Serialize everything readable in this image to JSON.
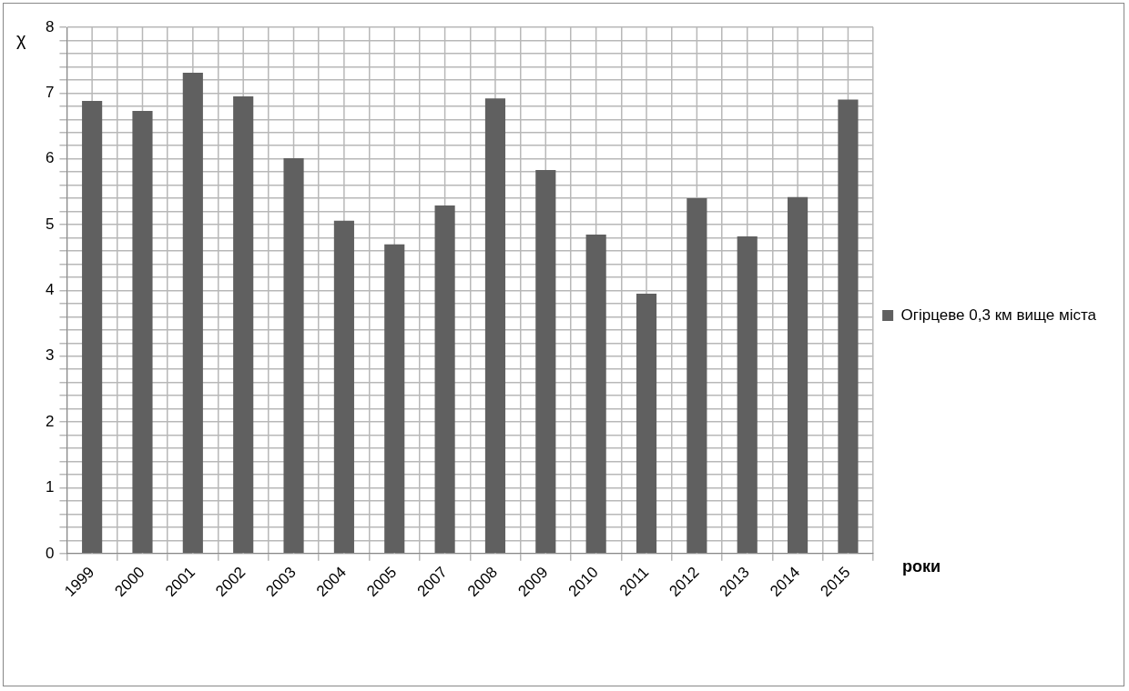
{
  "chart_data": {
    "type": "bar",
    "xlabel": "роки",
    "ylabel": "χ",
    "categories": [
      "1999",
      "2000",
      "2001",
      "2002",
      "2003",
      "2004",
      "2005",
      "2007",
      "2008",
      "2009",
      "2010",
      "2011",
      "2012",
      "2013",
      "2014",
      "2015"
    ],
    "series": [
      {
        "name": "Огірцеве 0,3 км вище міста",
        "color": "#606060",
        "values": [
          6.88,
          6.73,
          7.31,
          6.95,
          6.01,
          5.06,
          4.7,
          5.29,
          6.92,
          5.83,
          4.85,
          3.95,
          5.4,
          4.82,
          5.42,
          6.9
        ]
      }
    ],
    "ylim": [
      0,
      8
    ],
    "yticks": [
      0,
      {
        "value": 0.2,
        "label": null
      },
      {
        "value": 0.4,
        "label": null
      },
      {
        "value": 0.6,
        "label": null
      },
      {
        "value": 0.8,
        "label": null
      },
      1,
      {
        "value": 1.2,
        "label": null
      },
      {
        "value": 1.4,
        "label": null
      },
      {
        "value": 1.6,
        "label": null
      },
      {
        "value": 1.8,
        "label": null
      },
      2,
      {
        "value": 2.2,
        "label": null
      },
      {
        "value": 2.4,
        "label": null
      },
      {
        "value": 2.6,
        "label": null
      },
      {
        "value": 2.8,
        "label": null
      },
      3,
      {
        "value": 3.2,
        "label": null
      },
      {
        "value": 3.4,
        "label": null
      },
      {
        "value": 3.6,
        "label": null
      },
      {
        "value": 3.8,
        "label": null
      },
      4,
      {
        "value": 4.2,
        "label": null
      },
      {
        "value": 4.4,
        "label": null
      },
      {
        "value": 4.6,
        "label": null
      },
      {
        "value": 4.8,
        "label": null
      },
      5,
      {
        "value": 5.2,
        "label": null
      },
      {
        "value": 5.4,
        "label": null
      },
      {
        "value": 5.6,
        "label": null
      },
      {
        "value": 5.8,
        "label": null
      },
      6,
      {
        "value": 6.2,
        "label": null
      },
      {
        "value": 6.4,
        "label": null
      },
      {
        "value": 6.6,
        "label": null
      },
      {
        "value": 6.8,
        "label": null
      },
      7,
      {
        "value": 7.2,
        "label": null
      },
      {
        "value": 7.4,
        "label": null
      },
      {
        "value": 7.6,
        "label": null
      },
      {
        "value": 7.8,
        "label": null
      },
      8
    ],
    "grid": true,
    "legend": "right"
  }
}
